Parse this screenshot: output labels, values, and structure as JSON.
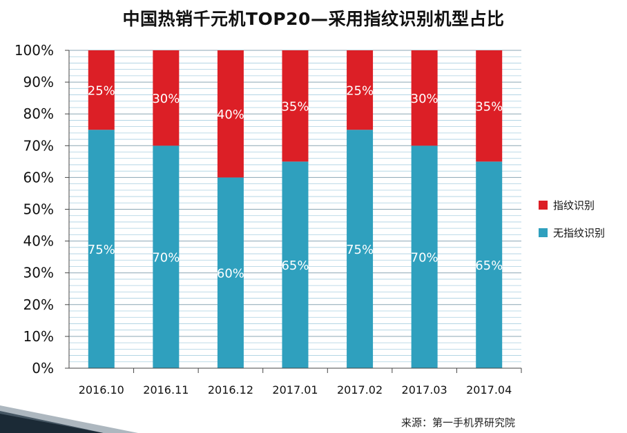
{
  "chart_data": {
    "type": "bar",
    "stacked": true,
    "title": "中国热销千元机TOP20—采用指纹识别机型占比",
    "categories": [
      "2016.10",
      "2016.11",
      "2016.12",
      "2017.01",
      "2017.02",
      "2017.03",
      "2017.04"
    ],
    "series": [
      {
        "name": "无指纹识别",
        "color": "#2fa0be",
        "values": [
          75,
          70,
          60,
          65,
          75,
          70,
          65
        ],
        "labels": [
          "75%",
          "70%",
          "60%",
          "65%",
          "75%",
          "70%",
          "65%"
        ]
      },
      {
        "name": "指纹识别",
        "color": "#dc1f26",
        "values": [
          25,
          30,
          40,
          35,
          25,
          30,
          35
        ],
        "labels": [
          "25%",
          "30%",
          "40%",
          "35%",
          "25%",
          "30%",
          "35%"
        ]
      }
    ],
    "ylim": [
      0,
      100
    ],
    "yticks": [
      "0%",
      "10%",
      "20%",
      "30%",
      "40%",
      "50%",
      "60%",
      "70%",
      "80%",
      "90%",
      "100%"
    ],
    "grid": true,
    "legend_position": "right"
  },
  "source": "来源：第一手机界研究院",
  "colors": {
    "gridline": "#a8cfe0",
    "axis": "#444444"
  }
}
